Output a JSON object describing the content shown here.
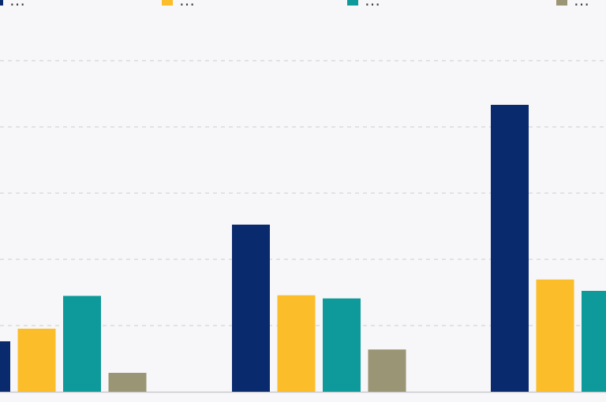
{
  "chart_data": {
    "type": "bar",
    "categories": [
      "",
      "",
      ""
    ],
    "series": [
      {
        "name": "…",
        "color": "#0a2a6e",
        "values": [
          80,
          265,
          455
        ]
      },
      {
        "name": "…",
        "color": "#fbbd2a",
        "values": [
          100,
          153,
          178
        ]
      },
      {
        "name": "…",
        "color": "#0e9a9a",
        "values": [
          152,
          148,
          160
        ]
      },
      {
        "name": "…",
        "color": "#9a9574",
        "values": [
          30,
          67,
          null
        ]
      }
    ],
    "ylim": [
      0,
      525
    ],
    "grid": true,
    "gridlines_dashed": true,
    "legend_position": "top"
  },
  "colors": {
    "background": "#f7f6f9",
    "gridline": "#d6d6dc",
    "baseline": "#c9c9cf"
  }
}
